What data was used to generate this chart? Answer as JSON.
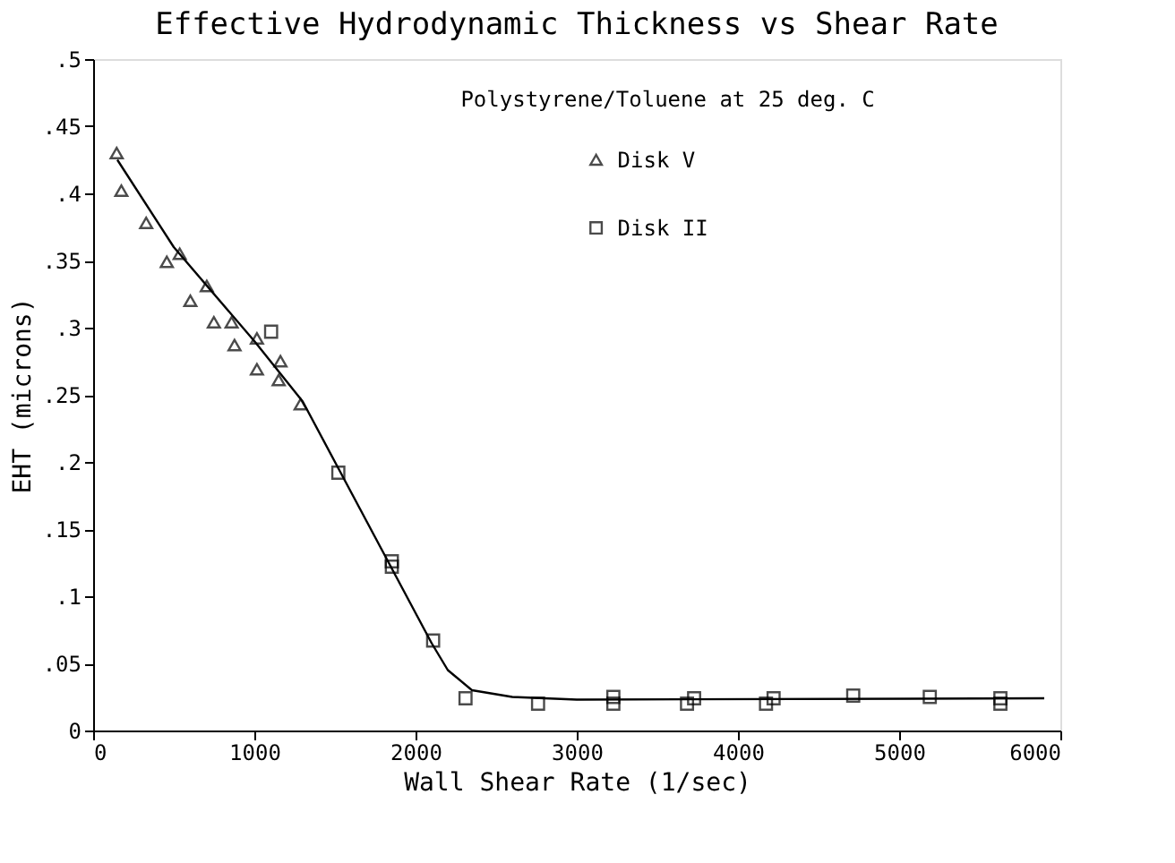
{
  "chart_data": {
    "type": "scatter",
    "title": "Effective Hydrodynamic Thickness  vs  Shear Rate",
    "xlabel": "Wall Shear Rate  (1/sec)",
    "ylabel": "EHT  (microns)",
    "annotations": [
      "Polystyrene/Toluene at 25 deg. C"
    ],
    "xlim": [
      0,
      6000
    ],
    "xticks": [
      0,
      1000,
      2000,
      3000,
      4000,
      5000,
      6000
    ],
    "ylim": [
      0,
      0.5
    ],
    "yticks": [
      {
        "value": 0,
        "label": "0"
      },
      {
        "value": 0.05,
        "label": ".05"
      },
      {
        "value": 0.1,
        "label": ".1"
      },
      {
        "value": 0.15,
        "label": ".15"
      },
      {
        "value": 0.2,
        "label": ".2"
      },
      {
        "value": 0.25,
        "label": ".25"
      },
      {
        "value": 0.3,
        "label": ".3"
      },
      {
        "value": 0.35,
        "label": ".35"
      },
      {
        "value": 0.4,
        "label": ".4"
      },
      {
        "value": 0.45,
        "label": ".45"
      },
      {
        "value": 0.5,
        "label": ".5"
      }
    ],
    "legend": "top right",
    "grid": false,
    "series": [
      {
        "name": "Disk V",
        "color": "#000000",
        "marker": "triangle",
        "x": [
          146,
          175,
          329,
          457,
          537,
          705,
          603,
          749,
          859,
          877,
          1016,
          1016,
          1162,
          1151,
          1287
        ],
        "values": [
          0.43,
          0.402,
          0.378,
          0.349,
          0.355,
          0.331,
          0.32,
          0.304,
          0.304,
          0.287,
          0.292,
          0.269,
          0.275,
          0.261,
          0.243
        ]
      },
      {
        "name": "Disk II",
        "color": "#000000",
        "marker": "square",
        "x": [
          1104,
          1521,
          1853,
          1853,
          2109,
          2310,
          2760,
          3227,
          3227,
          3684,
          3728,
          4174,
          4221,
          4715,
          5190,
          5628,
          5628
        ],
        "values": [
          0.297,
          0.192,
          0.122,
          0.126,
          0.067,
          0.024,
          0.02,
          0.025,
          0.02,
          0.02,
          0.024,
          0.02,
          0.024,
          0.026,
          0.025,
          0.024,
          0.02
        ]
      },
      {
        "type": "line",
        "color": "#000000",
        "line_style": "solid",
        "x": [
          150,
          500,
          1000,
          1300,
          1500,
          1700,
          1900,
          2100,
          2200,
          2350,
          2600,
          3000,
          5900
        ],
        "values": [
          0.425,
          0.36,
          0.29,
          0.245,
          0.2,
          0.155,
          0.11,
          0.065,
          0.045,
          0.03,
          0.025,
          0.023,
          0.024
        ]
      }
    ]
  }
}
